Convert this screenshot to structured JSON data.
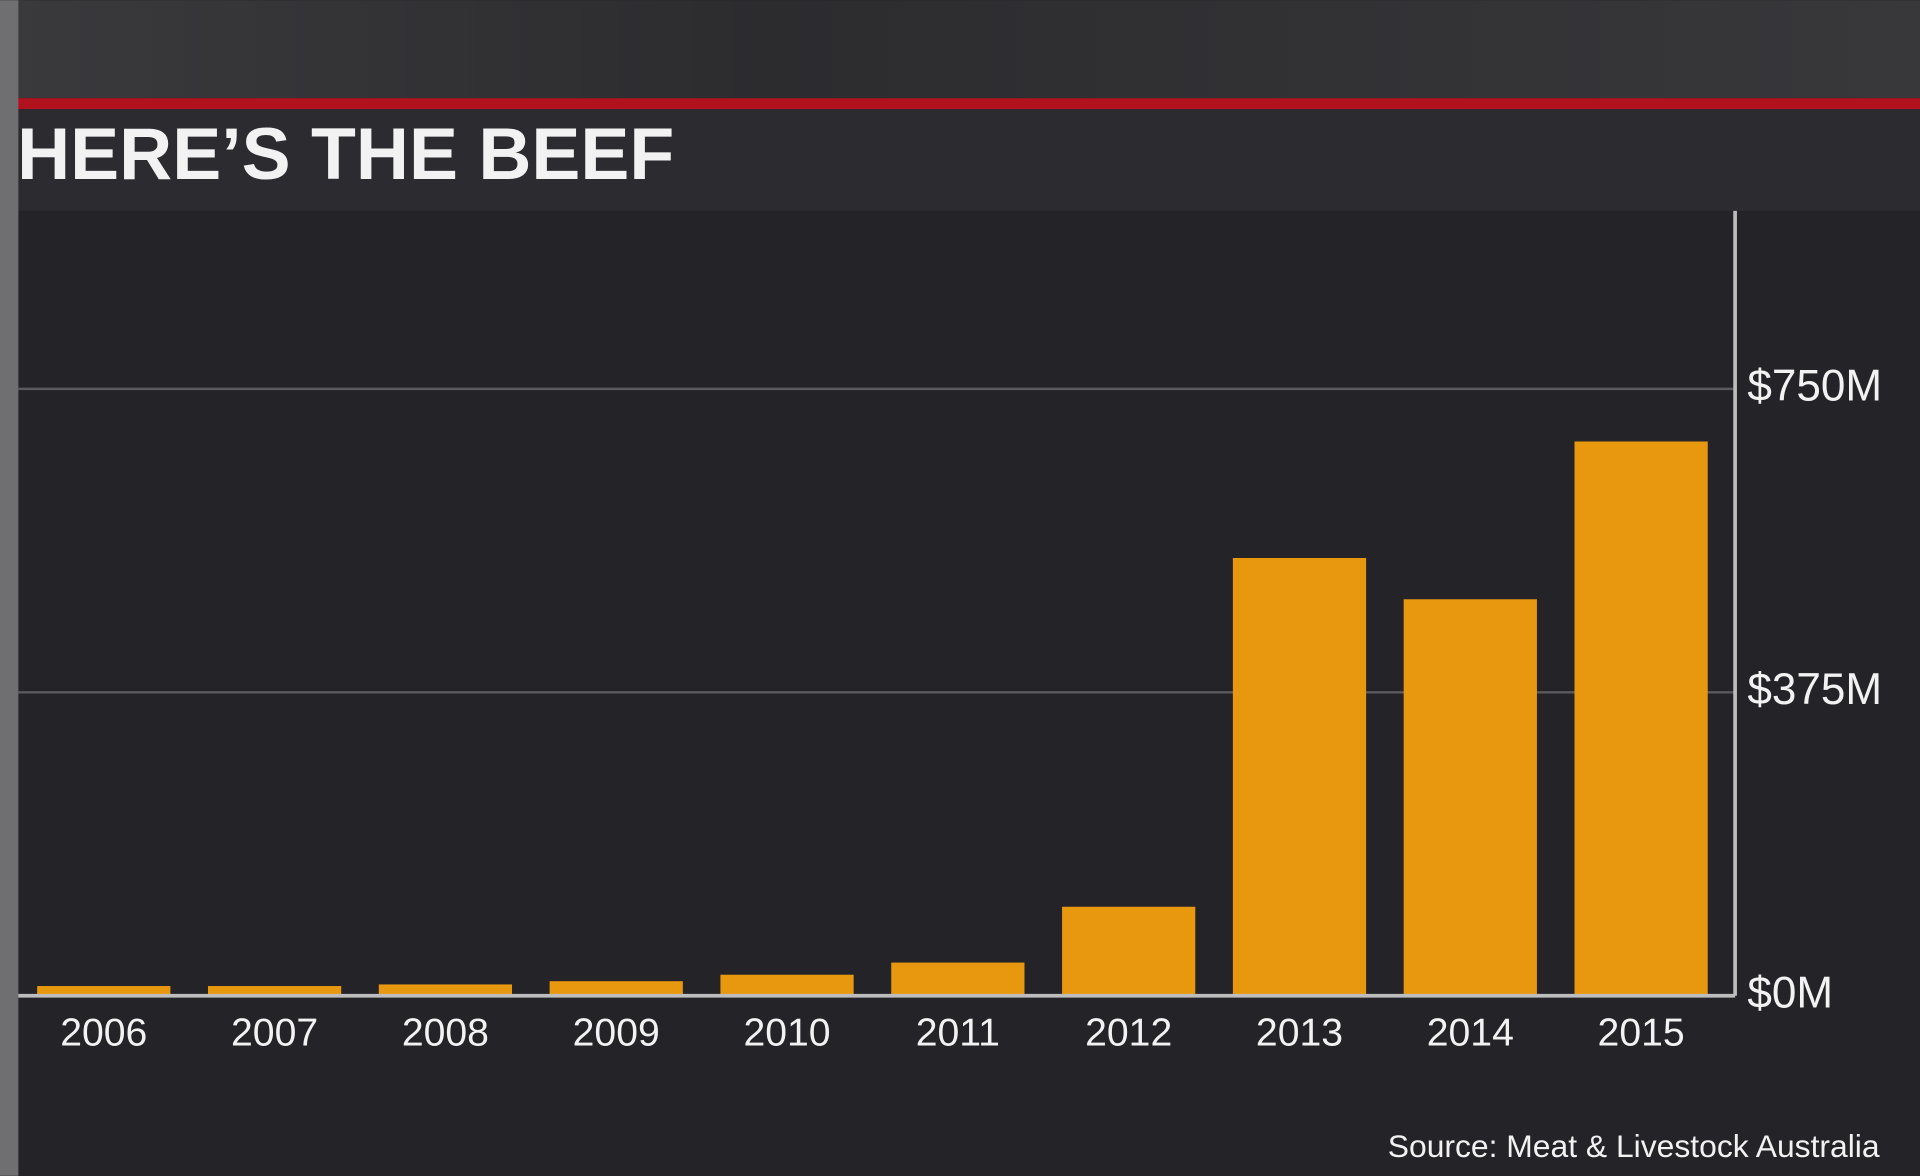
{
  "chart_data": {
    "type": "bar",
    "title": "HERE’S THE BEEF",
    "source": "Source: Meat & Livestock Australia",
    "categories": [
      "2006",
      "2007",
      "2008",
      "2009",
      "2010",
      "2011",
      "2012",
      "2013",
      "2014",
      "2015"
    ],
    "values": [
      12,
      12,
      14,
      18,
      26,
      41,
      110,
      541,
      490,
      685
    ],
    "color": "#e8980f",
    "ylim": [
      0,
      970
    ],
    "yticks": [
      {
        "value": 0,
        "label": "$0M"
      },
      {
        "value": 375,
        "label": "$375M"
      },
      {
        "value": 750,
        "label": "$750M"
      }
    ],
    "grid": true
  }
}
